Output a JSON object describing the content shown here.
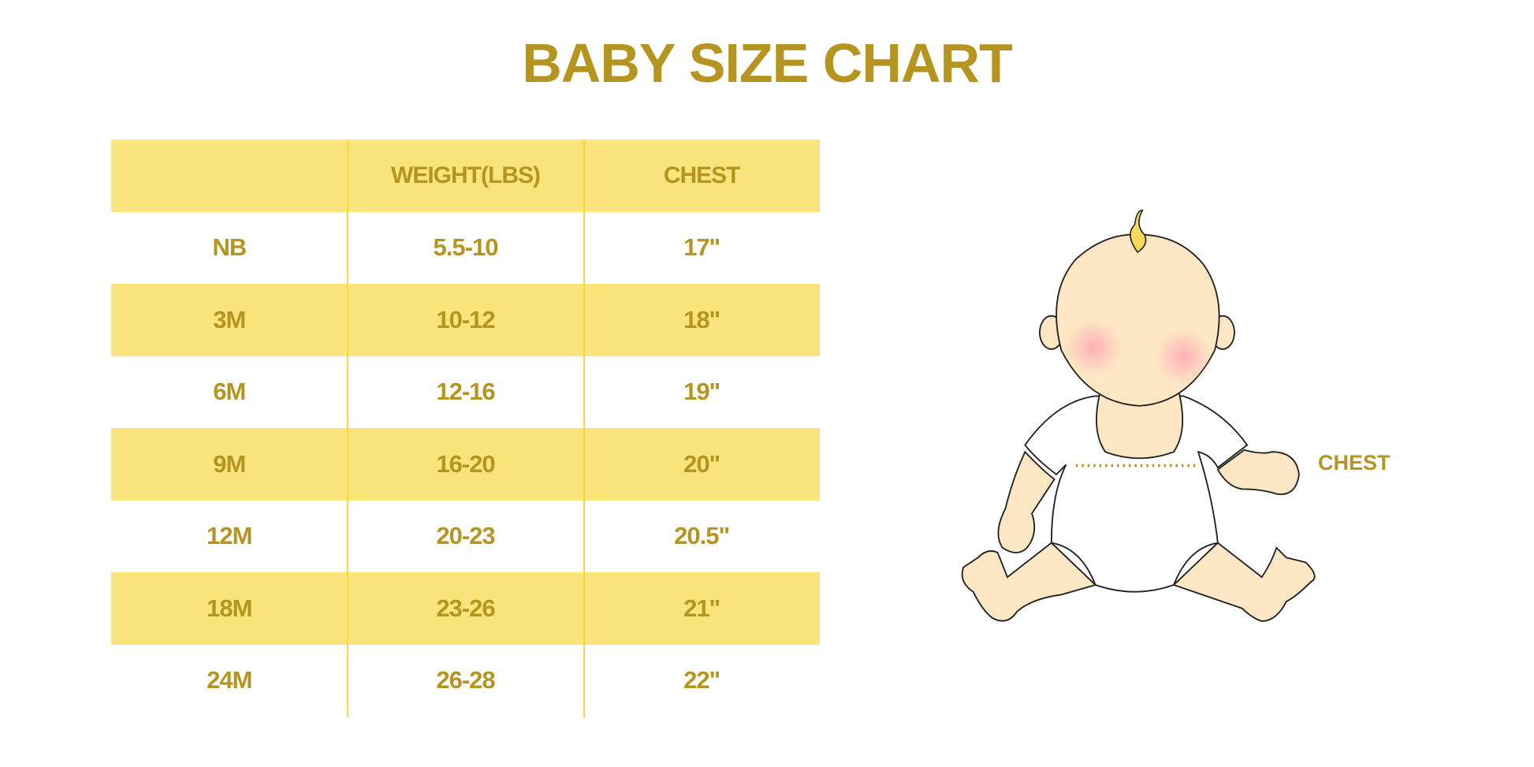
{
  "chart_data": {
    "type": "table",
    "title": "BABY SIZE CHART",
    "columns": [
      "",
      "WEIGHT(LBS)",
      "CHEST"
    ],
    "rows": [
      [
        "NB",
        "5.5-10",
        "17\""
      ],
      [
        "3M",
        "10-12",
        "18\""
      ],
      [
        "6M",
        "12-16",
        "19\""
      ],
      [
        "9M",
        "16-20",
        "20\""
      ],
      [
        "12M",
        "20-23",
        "20.5\""
      ],
      [
        "18M",
        "23-26",
        "21\""
      ],
      [
        "24M",
        "26-28",
        "22\""
      ]
    ]
  },
  "illustration": {
    "label": "CHEST"
  },
  "colors": {
    "text": "#b5951f",
    "band": "#fbe47c",
    "divider": "#f7d83f",
    "skin": "#fde6c4"
  }
}
